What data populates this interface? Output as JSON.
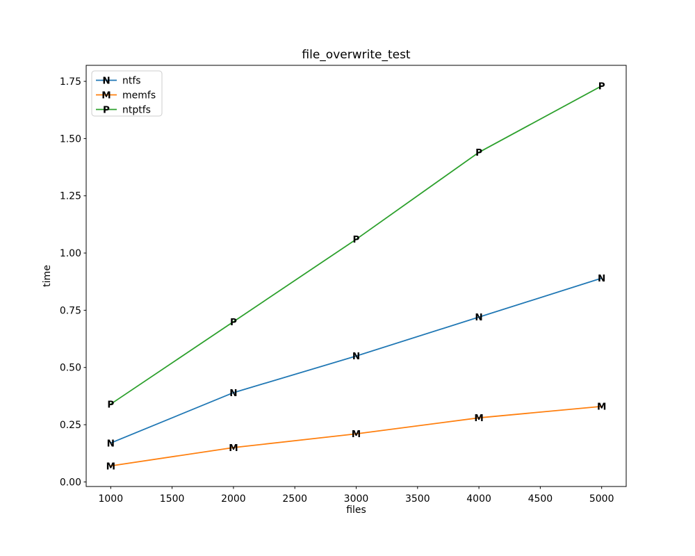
{
  "figure": {
    "background": "#ffffff",
    "frame_color": "#000000"
  },
  "chart_data": {
    "type": "line",
    "title": "file_overwrite_test",
    "xlabel": "files",
    "ylabel": "time",
    "x": [
      1000,
      2000,
      3000,
      4000,
      5000
    ],
    "series": [
      {
        "name": "ntfs",
        "color": "#1f77b4",
        "marker": "N",
        "values": [
          0.17,
          0.39,
          0.55,
          0.72,
          0.89
        ]
      },
      {
        "name": "memfs",
        "color": "#ff7f0e",
        "marker": "M",
        "values": [
          0.07,
          0.15,
          0.21,
          0.28,
          0.33
        ]
      },
      {
        "name": "ntptfs",
        "color": "#2ca02c",
        "marker": "P",
        "values": [
          0.34,
          0.7,
          1.06,
          1.44,
          1.73
        ]
      }
    ],
    "xticks": [
      1000,
      1500,
      2000,
      2500,
      3000,
      3500,
      4000,
      4500,
      5000
    ],
    "yticks": [
      0.0,
      0.25,
      0.5,
      0.75,
      1.0,
      1.25,
      1.5,
      1.75
    ],
    "xlim": [
      800,
      5200
    ],
    "ylim": [
      -0.02,
      1.82
    ],
    "grid": false,
    "legend": {
      "position": "upper-left",
      "border_color": "#cccccc",
      "background": "#ffffff",
      "entries": [
        "ntfs",
        "memfs",
        "ntptfs"
      ]
    }
  }
}
